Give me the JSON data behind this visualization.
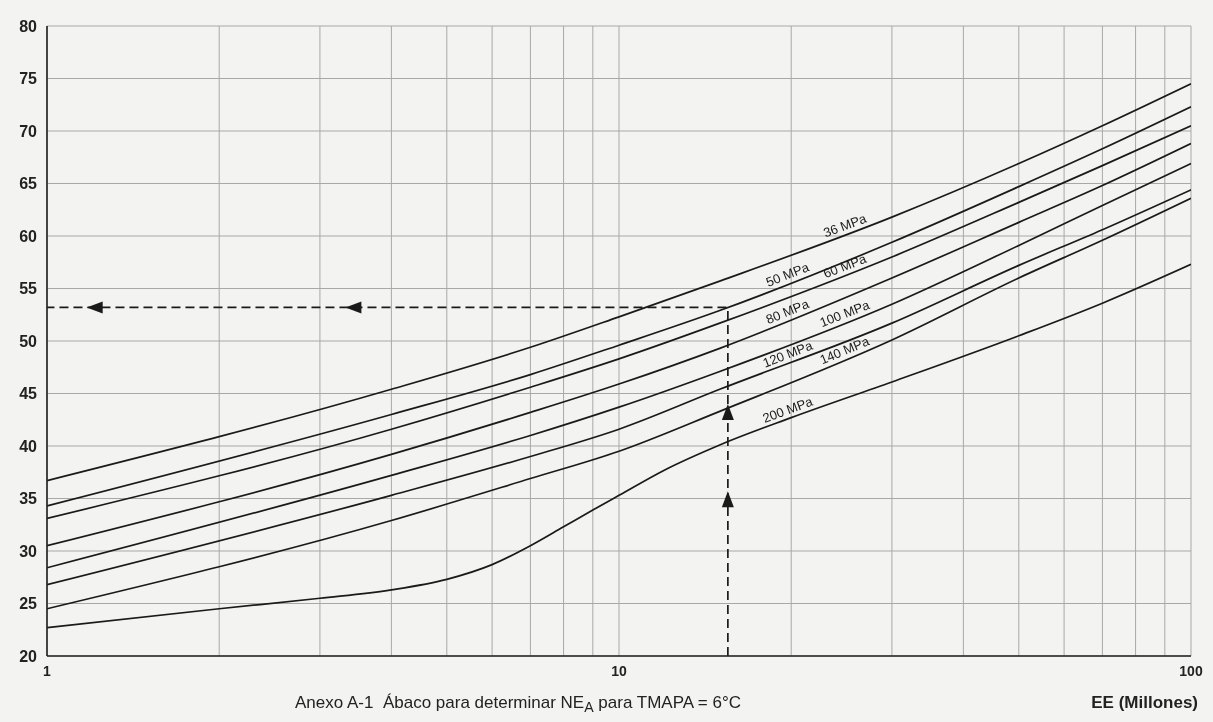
{
  "chart_data": {
    "type": "line",
    "xlabel": "EE (Millones)",
    "annotations": [
      "Anexo A-1  Ábaco para determinar NE$_{A}$ para TMAPA = 6°C"
    ],
    "log": "x",
    "xlim": [
      1,
      100
    ],
    "xticks": [
      1,
      {
        "value": 2,
        "label": null
      },
      {
        "value": 3,
        "label": null
      },
      {
        "value": 4,
        "label": null
      },
      {
        "value": 5,
        "label": null
      },
      {
        "value": 6,
        "label": null
      },
      {
        "value": 7,
        "label": null
      },
      {
        "value": 8,
        "label": null
      },
      {
        "value": 9,
        "label": null
      },
      10,
      {
        "value": 20,
        "label": null
      },
      {
        "value": 30,
        "label": null
      },
      {
        "value": 40,
        "label": null
      },
      {
        "value": 50,
        "label": null
      },
      {
        "value": 60,
        "label": null
      },
      {
        "value": 70,
        "label": null
      },
      {
        "value": 80,
        "label": null
      },
      {
        "value": 90,
        "label": null
      },
      100
    ],
    "ylim": [
      20,
      80
    ],
    "yticks": [
      20,
      25,
      30,
      35,
      40,
      45,
      50,
      55,
      60,
      65,
      70,
      75,
      80
    ],
    "grid": true,
    "marker": "none",
    "line_style": "solid",
    "series": [
      {
        "name": "36 MPa",
        "color": "#1a1a1a",
        "x": [
          1,
          4,
          7,
          10,
          15,
          30,
          50,
          70,
          100
        ],
        "values": [
          36.7,
          45.4,
          49.4,
          52.3,
          55.7,
          61.8,
          66.9,
          70.5,
          74.5
        ]
      },
      {
        "name": "50 MPa",
        "color": "#1a1a1a",
        "x": [
          1,
          4,
          7,
          10,
          15,
          30,
          50,
          70,
          100
        ],
        "values": [
          34.3,
          43.0,
          46.8,
          49.6,
          52.9,
          59.4,
          64.7,
          68.3,
          72.3
        ]
      },
      {
        "name": "60 MPa",
        "color": "#1a1a1a",
        "x": [
          1,
          4,
          7,
          10,
          15,
          30,
          50,
          70,
          100
        ],
        "values": [
          33.1,
          41.6,
          45.6,
          48.3,
          51.7,
          58.0,
          63.2,
          66.7,
          70.5
        ]
      },
      {
        "name": "80 MPa",
        "color": "#1a1a1a",
        "x": [
          1,
          4,
          7,
          10,
          15,
          30,
          50,
          70,
          100
        ],
        "values": [
          30.5,
          39.2,
          43.2,
          45.9,
          49.3,
          56.0,
          61.3,
          64.8,
          68.8
        ]
      },
      {
        "name": "100 MPa",
        "color": "#1a1a1a",
        "x": [
          1,
          4,
          7,
          10,
          15,
          30,
          50,
          70,
          100
        ],
        "values": [
          28.4,
          37.2,
          41.0,
          43.7,
          47.1,
          53.5,
          59.1,
          62.9,
          66.9
        ]
      },
      {
        "name": "120 MPa",
        "color": "#1a1a1a",
        "x": [
          1,
          4,
          7,
          10,
          15,
          30,
          50,
          70,
          100
        ],
        "values": [
          26.8,
          35.3,
          39.0,
          41.6,
          45.4,
          51.7,
          57.2,
          60.6,
          64.4
        ]
      },
      {
        "name": "140 MPa",
        "color": "#1a1a1a",
        "x": [
          1,
          4,
          7,
          10,
          15,
          30,
          50,
          70,
          100
        ],
        "values": [
          24.5,
          32.9,
          36.9,
          39.5,
          43.3,
          50.1,
          56.0,
          59.6,
          63.6
        ]
      },
      {
        "name": "200 MPa",
        "color": "#1a1a1a",
        "x": [
          1,
          2,
          3,
          4,
          5,
          6,
          7,
          8,
          9,
          10,
          12,
          15,
          20,
          30,
          50,
          70,
          100
        ],
        "values": [
          22.7,
          24.5,
          25.5,
          26.3,
          27.3,
          28.7,
          30.5,
          32.3,
          33.9,
          35.3,
          37.7,
          40.1,
          42.7,
          46.1,
          50.5,
          53.6,
          57.3
        ]
      },
      {
        "color": "#1a1a1a",
        "line_style": "dashed",
        "x": [
          15.5,
          15.5,
          1
        ],
        "values": [
          20,
          53.2,
          53.2
        ]
      }
    ]
  }
}
